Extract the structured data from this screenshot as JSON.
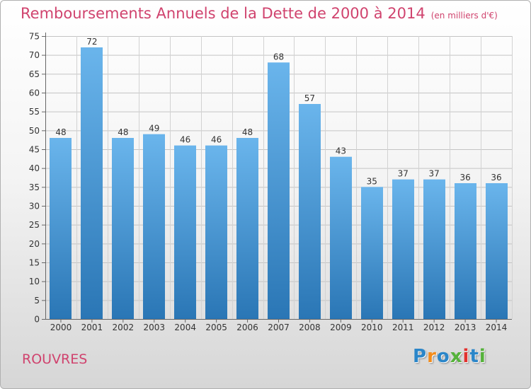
{
  "header": {
    "title": "Remboursements Annuels de la Dette de 2000 à 2014",
    "unit": "(en milliers d'€)"
  },
  "footer": {
    "commune": "ROUVRES",
    "logo": [
      "P",
      "r",
      "o",
      "x",
      "i",
      "t",
      "i"
    ]
  },
  "colors": {
    "accent": "#d0436e",
    "bar_light": "#6ab5ec",
    "bar_dark": "#2a76b5"
  },
  "chart_data": {
    "type": "bar",
    "title": "Remboursements Annuels de la Dette de 2000 à 2014",
    "xlabel": "",
    "ylabel": "",
    "categories": [
      "2000",
      "2001",
      "2002",
      "2003",
      "2004",
      "2005",
      "2006",
      "2007",
      "2008",
      "2009",
      "2010",
      "2011",
      "2012",
      "2013",
      "2014"
    ],
    "values": [
      48,
      72,
      48,
      49,
      46,
      46,
      48,
      68,
      57,
      43,
      35,
      37,
      37,
      36,
      36
    ],
    "ylim": [
      0,
      75
    ],
    "yticks": [
      0,
      5,
      10,
      15,
      20,
      25,
      30,
      35,
      40,
      45,
      50,
      55,
      60,
      65,
      70,
      75
    ],
    "grid": true,
    "data_labels": true
  }
}
